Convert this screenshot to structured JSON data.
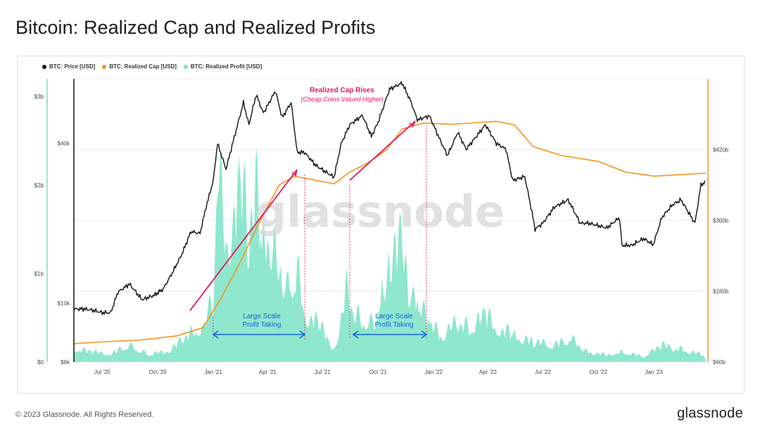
{
  "title": "Bitcoin: Realized Cap and Realized Profits",
  "footer": {
    "copyright": "© 2023 Glassnode. All Rights Reserved.",
    "logo": "glassnode"
  },
  "watermark": "glassnode",
  "colors": {
    "price": "#111111",
    "realized_cap": "#f7931a",
    "realized_profit": "#7be3c4",
    "annotation_pink": "#e8145c",
    "annotation_blue": "#1565e0"
  },
  "chart_data": {
    "type": "line",
    "legend": [
      {
        "name": "BTC: Price [USD]",
        "color": "#111111"
      },
      {
        "name": "BTC: Realized Cap [USD]",
        "color": "#f7931a"
      },
      {
        "name": "BTC: Realized Profit [USD]",
        "color": "#7be3c4"
      }
    ],
    "legend_position": "top-left",
    "x_ticks": [
      "Jul '20",
      "Oct '20",
      "Jan '21",
      "Apr '21",
      "Jul '21",
      "Oct '21",
      "Jan '22",
      "Apr '22",
      "Jul '22",
      "Oct '22",
      "Jan '23"
    ],
    "y_left_outer_ticks": [
      "$0",
      "$1b",
      "$2b",
      "$3b"
    ],
    "y_left_inner_ticks": [
      "$6k",
      "$10k",
      "$40k"
    ],
    "y_right_ticks": [
      "$60b",
      "$180b",
      "$300b",
      "$420b"
    ],
    "y_left_outer_range": [
      0,
      3.2
    ],
    "y_left_inner_scale": "log",
    "y_left_inner_range": [
      6000,
      70000
    ],
    "y_right_range": [
      60,
      540
    ],
    "series": [
      {
        "name": "BTC: Price [USD]",
        "axis": "left-inner",
        "log": true,
        "values": [
          [
            "2020-05-15",
            9500
          ],
          [
            "2020-06-01",
            9500
          ],
          [
            "2020-06-15",
            9400
          ],
          [
            "2020-07-01",
            9200
          ],
          [
            "2020-07-15",
            9200
          ],
          [
            "2020-07-27",
            11000
          ],
          [
            "2020-08-15",
            11800
          ],
          [
            "2020-09-05",
            10300
          ],
          [
            "2020-09-25",
            10700
          ],
          [
            "2020-10-10",
            11300
          ],
          [
            "2020-10-25",
            13000
          ],
          [
            "2020-11-10",
            15300
          ],
          [
            "2020-11-25",
            18600
          ],
          [
            "2020-12-10",
            18300
          ],
          [
            "2020-12-20",
            23000
          ],
          [
            "2021-01-01",
            29000
          ],
          [
            "2021-01-08",
            40000
          ],
          [
            "2021-01-22",
            32000
          ],
          [
            "2021-02-08",
            45000
          ],
          [
            "2021-02-20",
            57000
          ],
          [
            "2021-03-01",
            47000
          ],
          [
            "2021-03-13",
            61000
          ],
          [
            "2021-03-25",
            52000
          ],
          [
            "2021-04-14",
            63000
          ],
          [
            "2021-04-25",
            50000
          ],
          [
            "2021-05-10",
            57000
          ],
          [
            "2021-05-20",
            37000
          ],
          [
            "2021-06-01",
            37000
          ],
          [
            "2021-06-20",
            33000
          ],
          [
            "2021-07-20",
            29800
          ],
          [
            "2021-08-01",
            40000
          ],
          [
            "2021-08-15",
            47000
          ],
          [
            "2021-09-05",
            51000
          ],
          [
            "2021-09-20",
            42500
          ],
          [
            "2021-10-01",
            48000
          ],
          [
            "2021-10-20",
            64000
          ],
          [
            "2021-11-10",
            67500
          ],
          [
            "2021-11-25",
            57000
          ],
          [
            "2021-12-05",
            49000
          ],
          [
            "2021-12-25",
            50800
          ],
          [
            "2022-01-10",
            42000
          ],
          [
            "2022-01-24",
            36000
          ],
          [
            "2022-02-10",
            44000
          ],
          [
            "2022-02-24",
            38000
          ],
          [
            "2022-03-28",
            47000
          ],
          [
            "2022-04-15",
            40000
          ],
          [
            "2022-05-01",
            38000
          ],
          [
            "2022-05-12",
            29000
          ],
          [
            "2022-06-01",
            30000
          ],
          [
            "2022-06-13",
            22000
          ],
          [
            "2022-06-18",
            19000
          ],
          [
            "2022-07-01",
            20000
          ],
          [
            "2022-07-20",
            23000
          ],
          [
            "2022-08-12",
            24500
          ],
          [
            "2022-09-01",
            20000
          ],
          [
            "2022-09-15",
            20000
          ],
          [
            "2022-10-15",
            19200
          ],
          [
            "2022-11-05",
            21000
          ],
          [
            "2022-11-09",
            16500
          ],
          [
            "2022-11-25",
            16500
          ],
          [
            "2022-12-15",
            17500
          ],
          [
            "2022-12-31",
            16600
          ],
          [
            "2023-01-14",
            21000
          ],
          [
            "2023-02-01",
            23500
          ],
          [
            "2023-02-15",
            24500
          ],
          [
            "2023-03-10",
            20000
          ],
          [
            "2023-03-20",
            28000
          ],
          [
            "2023-03-28",
            28500
          ]
        ]
      },
      {
        "name": "BTC: Realized Cap [USD]",
        "axis": "right",
        "unit": "$b",
        "values": [
          [
            "2020-05-15",
            91
          ],
          [
            "2020-07-01",
            94
          ],
          [
            "2020-09-01",
            97
          ],
          [
            "2020-11-01",
            104
          ],
          [
            "2020-12-15",
            118
          ],
          [
            "2021-01-15",
            170
          ],
          [
            "2021-02-15",
            230
          ],
          [
            "2021-03-15",
            290
          ],
          [
            "2021-04-20",
            360
          ],
          [
            "2021-05-15",
            375
          ],
          [
            "2021-06-10",
            370
          ],
          [
            "2021-07-20",
            362
          ],
          [
            "2021-08-15",
            382
          ],
          [
            "2021-09-15",
            398
          ],
          [
            "2021-10-15",
            420
          ],
          [
            "2021-11-10",
            455
          ],
          [
            "2021-12-15",
            465
          ],
          [
            "2022-02-01",
            463
          ],
          [
            "2022-03-15",
            466
          ],
          [
            "2022-04-15",
            468
          ],
          [
            "2022-05-15",
            462
          ],
          [
            "2022-06-15",
            425
          ],
          [
            "2022-08-01",
            410
          ],
          [
            "2022-10-01",
            400
          ],
          [
            "2022-11-15",
            382
          ],
          [
            "2023-01-01",
            375
          ],
          [
            "2023-03-28",
            380
          ]
        ]
      },
      {
        "name": "BTC: Realized Profit [USD]",
        "axis": "left-outer",
        "unit": "$b",
        "type": "area",
        "values": [
          [
            "2020-05-15",
            0.2
          ],
          [
            "2020-06-15",
            0.15
          ],
          [
            "2020-07-15",
            0.12
          ],
          [
            "2020-08-15",
            0.25
          ],
          [
            "2020-09-15",
            0.12
          ],
          [
            "2020-10-15",
            0.15
          ],
          [
            "2020-11-15",
            0.35
          ],
          [
            "2020-12-15",
            0.55
          ],
          [
            "2021-01-01",
            0.9
          ],
          [
            "2021-01-08",
            2.9
          ],
          [
            "2021-01-22",
            1.7
          ],
          [
            "2021-02-10",
            2.4
          ],
          [
            "2021-02-20",
            2.8
          ],
          [
            "2021-03-01",
            1.4
          ],
          [
            "2021-03-12",
            2.6
          ],
          [
            "2021-03-25",
            1.8
          ],
          [
            "2021-04-14",
            1.9
          ],
          [
            "2021-04-25",
            1.3
          ],
          [
            "2021-05-10",
            1.2
          ],
          [
            "2021-05-20",
            1.35
          ],
          [
            "2021-06-05",
            0.7
          ],
          [
            "2021-06-25",
            0.55
          ],
          [
            "2021-07-20",
            0.2
          ],
          [
            "2021-08-01",
            0.6
          ],
          [
            "2021-08-10",
            1.1
          ],
          [
            "2021-08-25",
            0.75
          ],
          [
            "2021-09-10",
            0.65
          ],
          [
            "2021-09-25",
            0.6
          ],
          [
            "2021-10-10",
            1.15
          ],
          [
            "2021-10-21",
            1.6
          ],
          [
            "2021-11-08",
            1.75
          ],
          [
            "2021-11-20",
            1.1
          ],
          [
            "2021-12-05",
            1.05
          ],
          [
            "2021-12-25",
            0.55
          ],
          [
            "2022-01-15",
            0.4
          ],
          [
            "2022-02-10",
            0.6
          ],
          [
            "2022-03-01",
            0.5
          ],
          [
            "2022-03-28",
            0.7
          ],
          [
            "2022-04-20",
            0.5
          ],
          [
            "2022-05-15",
            0.4
          ],
          [
            "2022-06-15",
            0.3
          ],
          [
            "2022-07-20",
            0.25
          ],
          [
            "2022-08-15",
            0.35
          ],
          [
            "2022-09-15",
            0.15
          ],
          [
            "2022-10-15",
            0.1
          ],
          [
            "2022-11-10",
            0.15
          ],
          [
            "2022-12-15",
            0.08
          ],
          [
            "2023-01-15",
            0.25
          ],
          [
            "2023-02-10",
            0.2
          ],
          [
            "2023-03-28",
            0.1
          ]
        ]
      }
    ],
    "annotations": {
      "realized_cap_title": "Realized Cap Rises",
      "realized_cap_subtitle": "(Cheap Coins Valued Higher)",
      "profit_taking_1": "Large Scale\nProfit Taking",
      "profit_taking_2": "Large Scale\nProfit Taking"
    }
  }
}
